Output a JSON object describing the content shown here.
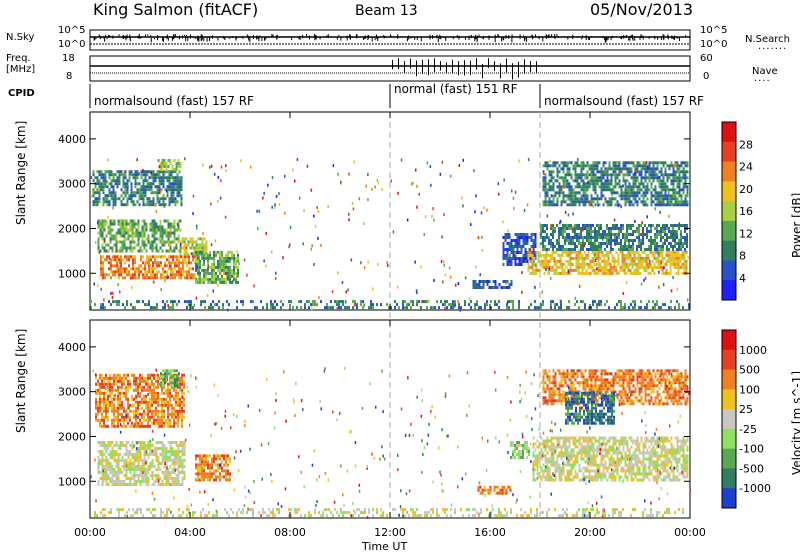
{
  "header": {
    "station": "King Salmon (fitACF)",
    "beam": "Beam 13",
    "date": "05/Nov/2013"
  },
  "left_labels": {
    "nsky": "N.Sky",
    "freq": "Freq.",
    "freq_unit": "[MHz]",
    "cpid": "CPID",
    "nsky_top": "10^5",
    "nsky_bottom": "10^0",
    "freq_top": "18",
    "freq_bottom": "8"
  },
  "right_labels": {
    "nsearch": "N.Search",
    "nave": "Nave",
    "nsearch_top": "10^5",
    "nsearch_bottom": "10^0",
    "nave_top": "60",
    "nave_bottom": "0"
  },
  "cpid_segments": [
    {
      "label": "normalsound (fast) 157 RF",
      "start_hour": 0
    },
    {
      "label": "normal (fast) 151 RF",
      "start_hour": 12
    },
    {
      "label": "normalsound (fast) 157 RF",
      "start_hour": 18
    }
  ],
  "chart_data": [
    {
      "type": "heatmap",
      "name": "power-panel",
      "ylabel": "Slant Range [km]",
      "xlabel": "Time UT",
      "x_ticks": [
        "00:00",
        "04:00",
        "08:00",
        "12:00",
        "16:00",
        "20:00",
        "00:00"
      ],
      "xlim_hours": [
        0,
        24
      ],
      "y_ticks": [
        1000,
        2000,
        3000,
        4000
      ],
      "ylim": [
        180,
        4600
      ],
      "colorbar": {
        "label": "Power [dB]",
        "ticks": [
          4,
          8,
          12,
          16,
          20,
          24,
          28
        ],
        "range": [
          0,
          32
        ],
        "colors": [
          "#1f1fff",
          "#2a52c8",
          "#2f7f60",
          "#5aa850",
          "#a8d040",
          "#f0c020",
          "#f08020",
          "#e84020",
          "#e01010"
        ]
      },
      "blocks": [
        {
          "t": [
            0.1,
            3.7
          ],
          "r": [
            2500,
            3300
          ],
          "level": 2
        },
        {
          "t": [
            0.3,
            3.6
          ],
          "r": [
            1500,
            2200
          ],
          "level": 3
        },
        {
          "t": [
            0.4,
            4.4
          ],
          "r": [
            900,
            1400
          ],
          "level": 6
        },
        {
          "t": [
            3.5,
            4.7
          ],
          "r": [
            1400,
            1800
          ],
          "level": 4
        },
        {
          "t": [
            4.2,
            5.9
          ],
          "r": [
            800,
            1500
          ],
          "level": 3
        },
        {
          "t": [
            2.7,
            3.6
          ],
          "r": [
            3300,
            3550
          ],
          "level": 4
        },
        {
          "t": [
            16.5,
            17.8
          ],
          "r": [
            1200,
            1900
          ],
          "level": 1
        },
        {
          "t": [
            17.5,
            23.9
          ],
          "r": [
            1000,
            1500
          ],
          "level": 5
        },
        {
          "t": [
            18.0,
            23.9
          ],
          "r": [
            1500,
            2100
          ],
          "level": 2
        },
        {
          "t": [
            18.1,
            23.9
          ],
          "r": [
            2500,
            3500
          ],
          "level": 2
        },
        {
          "t": [
            15.3,
            16.9
          ],
          "r": [
            700,
            850
          ],
          "level": 1
        },
        {
          "t": [
            0.0,
            24.0
          ],
          "r": [
            200,
            400
          ],
          "level": 2
        }
      ]
    },
    {
      "type": "heatmap",
      "name": "velocity-panel",
      "ylabel": "Slant Range [km]",
      "xlabel": "Time UT",
      "x_ticks": [
        "00:00",
        "04:00",
        "08:00",
        "12:00",
        "16:00",
        "20:00",
        "00:00"
      ],
      "xlim_hours": [
        0,
        24
      ],
      "y_ticks": [
        1000,
        2000,
        3000,
        4000
      ],
      "ylim": [
        180,
        4600
      ],
      "colorbar": {
        "label": "Velocity [m s^-1]",
        "ticks": [
          1000,
          500,
          100,
          25,
          -25,
          -100,
          -500,
          -1000
        ],
        "colors": [
          "#1f3fd0",
          "#2f7f60",
          "#5aa850",
          "#90e060",
          "#c8c8c0",
          "#f0c020",
          "#f08020",
          "#e84020",
          "#e01010"
        ]
      },
      "blocks": [
        {
          "t": [
            0.3,
            3.8
          ],
          "r": [
            900,
            1900
          ],
          "level": 4
        },
        {
          "t": [
            0.2,
            3.8
          ],
          "r": [
            2200,
            3400
          ],
          "level": 6
        },
        {
          "t": [
            4.2,
            5.6
          ],
          "r": [
            1000,
            1600
          ],
          "level": 6
        },
        {
          "t": [
            2.8,
            3.6
          ],
          "r": [
            3100,
            3500
          ],
          "level": 2
        },
        {
          "t": [
            16.8,
            17.6
          ],
          "r": [
            1500,
            1900
          ],
          "level": 3
        },
        {
          "t": [
            17.7,
            23.9
          ],
          "r": [
            1000,
            2000
          ],
          "level": 4
        },
        {
          "t": [
            18.1,
            23.9
          ],
          "r": [
            2700,
            3500
          ],
          "level": 6
        },
        {
          "t": [
            19.0,
            21.0
          ],
          "r": [
            2300,
            3000
          ],
          "level": 1
        },
        {
          "t": [
            15.5,
            16.8
          ],
          "r": [
            750,
            900
          ],
          "level": 6
        },
        {
          "t": [
            0.0,
            24.0
          ],
          "r": [
            200,
            400
          ],
          "level": 4
        }
      ]
    }
  ]
}
